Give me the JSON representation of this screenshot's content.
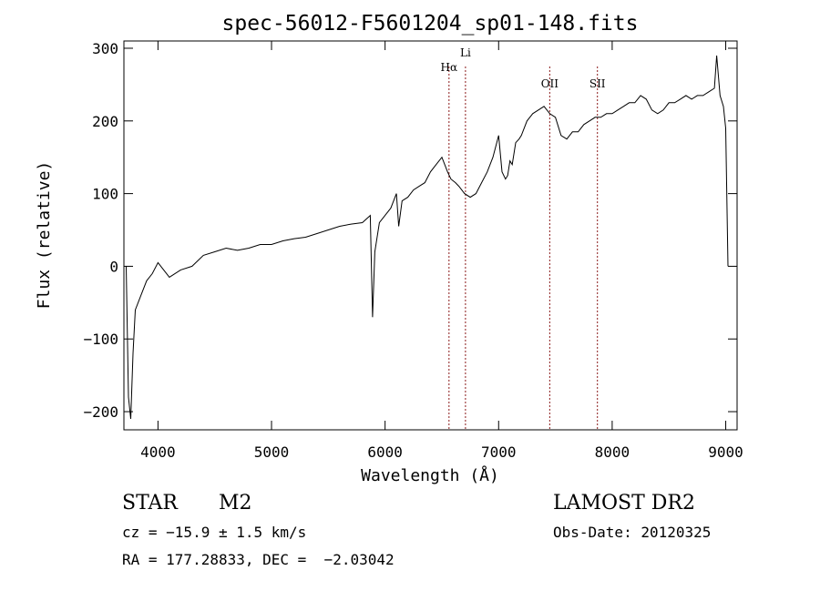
{
  "chart_data": {
    "type": "line",
    "title": "spec-56012-F5601204_sp01-148.fits",
    "xlabel": "Wavelength (Å)",
    "ylabel": "Flux (relative)",
    "xlim": [
      3700,
      9100
    ],
    "ylim": [
      -225,
      310
    ],
    "xticks": [
      4000,
      5000,
      6000,
      7000,
      8000,
      9000
    ],
    "yticks": [
      -200,
      -100,
      0,
      100,
      200,
      300
    ],
    "grid": false,
    "lines": [
      {
        "label": "Hα",
        "x": 6563
      },
      {
        "label": "Li",
        "x": 6708
      },
      {
        "label": "OII",
        "x": 7450
      },
      {
        "label": "SII",
        "x": 7870
      }
    ],
    "series": [
      {
        "x": [
          3720,
          3740,
          3760,
          3780,
          3800,
          3850,
          3900,
          3950,
          4000,
          4100,
          4200,
          4300,
          4400,
          4500,
          4600,
          4700,
          4800,
          4900,
          5000,
          5100,
          5200,
          5300,
          5400,
          5500,
          5600,
          5700,
          5800,
          5870,
          5890,
          5910,
          5950,
          6000,
          6050,
          6100,
          6120,
          6150,
          6200,
          6250,
          6300,
          6350,
          6400,
          6450,
          6500,
          6550,
          6580,
          6620,
          6650,
          6700,
          6750,
          6800,
          6850,
          6900,
          6950,
          7000,
          7030,
          7060,
          7080,
          7100,
          7120,
          7150,
          7180,
          7200,
          7250,
          7300,
          7350,
          7400,
          7450,
          7500,
          7550,
          7600,
          7650,
          7700,
          7750,
          7800,
          7850,
          7900,
          7950,
          8000,
          8050,
          8100,
          8150,
          8200,
          8250,
          8300,
          8350,
          8400,
          8450,
          8500,
          8550,
          8600,
          8650,
          8700,
          8750,
          8800,
          8850,
          8900,
          8920,
          8950,
          8980,
          9000,
          9020
        ],
        "y": [
          0,
          -180,
          -210,
          -120,
          -60,
          -40,
          -20,
          -10,
          5,
          -15,
          -5,
          0,
          15,
          20,
          25,
          22,
          25,
          30,
          30,
          35,
          38,
          40,
          45,
          50,
          55,
          58,
          60,
          70,
          -70,
          20,
          60,
          70,
          80,
          100,
          55,
          90,
          95,
          105,
          110,
          115,
          130,
          140,
          150,
          130,
          120,
          115,
          110,
          100,
          95,
          100,
          115,
          130,
          150,
          180,
          130,
          120,
          125,
          145,
          140,
          170,
          175,
          180,
          200,
          210,
          215,
          220,
          210,
          205,
          180,
          175,
          185,
          185,
          195,
          200,
          205,
          205,
          210,
          210,
          215,
          220,
          225,
          225,
          235,
          230,
          215,
          210,
          215,
          225,
          225,
          230,
          235,
          230,
          235,
          235,
          240,
          245,
          290,
          235,
          220,
          190,
          0
        ]
      }
    ]
  },
  "info": {
    "object_class": "STAR",
    "subclass": "M2",
    "survey": "LAMOST DR2",
    "cz": "cz = −15.9 ± 1.5 km/s",
    "obs_date": "Obs-Date: 20120325",
    "coords": "RA = 177.28833, DEC =  −2.03042"
  }
}
